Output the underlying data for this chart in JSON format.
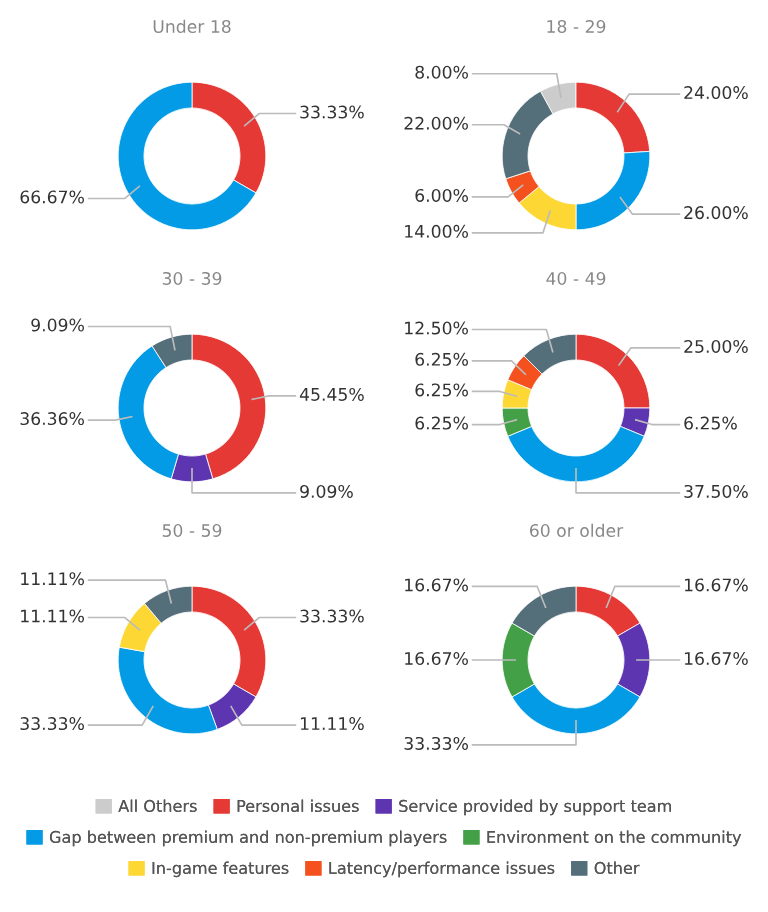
{
  "chart_data": [
    {
      "type": "donut",
      "title": "Under 18",
      "categories": [
        "All Others",
        "Personal issues",
        "Service provided by support team",
        "Gap between premium and non-premium players",
        "Environment on the community",
        "In-game features",
        "Latency/performance issues",
        "Other"
      ],
      "values": [
        null,
        33.33,
        null,
        66.67,
        null,
        null,
        null,
        null
      ],
      "value_labels": [
        null,
        "33.33%",
        null,
        "66.67%",
        null,
        null,
        null,
        null
      ],
      "colors": [
        "#cccccc",
        "#e53935",
        "#5e35b1",
        "#039be5",
        "#43a047",
        "#fdd835",
        "#f4511e",
        "#546e7a"
      ],
      "legend": "bottom"
    },
    {
      "type": "donut",
      "title": "18 - 29",
      "categories": [
        null,
        null,
        null,
        null,
        null,
        null,
        null,
        null
      ],
      "values": [
        8.0,
        24.0,
        null,
        26.0,
        null,
        14.0,
        6.0,
        22.0
      ],
      "value_labels": [
        "8.00%",
        "24.00%",
        null,
        "26.00%",
        null,
        "14.00%",
        "6.00%",
        "22.00%"
      ],
      "colors": [
        "#cccccc",
        "#e53935",
        "#5e35b1",
        "#039be5",
        "#43a047",
        "#fdd835",
        "#f4511e",
        "#546e7a"
      ]
    },
    {
      "type": "donut",
      "title": "30 - 39",
      "categories": [
        null,
        null,
        null,
        null,
        null,
        null,
        null,
        null
      ],
      "values": [
        null,
        45.45,
        9.09,
        36.36,
        null,
        null,
        null,
        9.09
      ],
      "value_labels": [
        null,
        "45.45%",
        "9.09%",
        "36.36%",
        null,
        null,
        null,
        "9.09%"
      ],
      "colors": [
        "#cccccc",
        "#e53935",
        "#5e35b1",
        "#039be5",
        "#43a047",
        "#fdd835",
        "#f4511e",
        "#546e7a"
      ]
    },
    {
      "type": "donut",
      "title": "40 - 49",
      "categories": [
        null,
        null,
        null,
        null,
        null,
        null,
        null,
        null
      ],
      "values": [
        null,
        25.0,
        6.25,
        37.5,
        6.25,
        6.25,
        6.25,
        12.5
      ],
      "value_labels": [
        null,
        "25.00%",
        "6.25%",
        "37.50%",
        "6.25%",
        "6.25%",
        "6.25%",
        "12.50%"
      ],
      "colors": [
        "#cccccc",
        "#e53935",
        "#5e35b1",
        "#039be5",
        "#43a047",
        "#fdd835",
        "#f4511e",
        "#546e7a"
      ]
    },
    {
      "type": "donut",
      "title": "50 - 59",
      "categories": [
        null,
        null,
        null,
        null,
        null,
        null,
        null,
        null
      ],
      "values": [
        null,
        33.33,
        11.11,
        33.33,
        null,
        11.11,
        null,
        11.11
      ],
      "value_labels": [
        null,
        "33.33%",
        "11.11%",
        "33.33%",
        null,
        "11.11%",
        null,
        "11.11%"
      ],
      "colors": [
        "#cccccc",
        "#e53935",
        "#5e35b1",
        "#039be5",
        "#43a047",
        "#fdd835",
        "#f4511e",
        "#546e7a"
      ]
    },
    {
      "type": "donut",
      "title": "60 or older",
      "categories": [
        null,
        null,
        null,
        null,
        null,
        null,
        null,
        null
      ],
      "values": [
        null,
        16.67,
        16.67,
        33.33,
        16.67,
        null,
        null,
        16.67
      ],
      "value_labels": [
        null,
        "16.67%",
        "16.67%",
        "33.33%",
        "16.67%",
        null,
        null,
        "16.67%"
      ],
      "colors": [
        "#cccccc",
        "#e53935",
        "#5e35b1",
        "#039be5",
        "#43a047",
        "#fdd835",
        "#f4511e",
        "#546e7a"
      ]
    }
  ]
}
